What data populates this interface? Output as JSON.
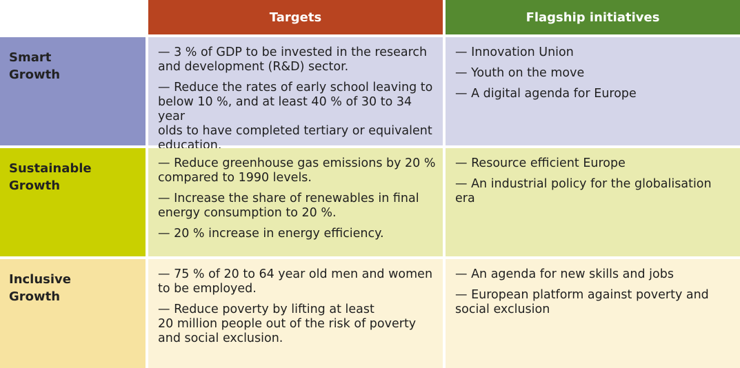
{
  "headers": {
    "targets": "Targets",
    "flagship": "Flagship initiatives"
  },
  "rows": [
    {
      "label": "Smart\nGrowth",
      "targets": [
        "— 3 % of GDP to be invested in the research\nand development (R&D) sector.",
        "— Reduce the rates of early school leaving to\nbelow 10 %, and at least 40 % of 30 to 34 year\nolds to have completed tertiary or equivalent\neducation."
      ],
      "flagship": [
        "— Innovation Union",
        "— Youth on the move",
        "— A digital agenda for Europe"
      ]
    },
    {
      "label": "Sustainable\nGrowth",
      "targets": [
        "— Reduce greenhouse gas emissions by 20 %\ncompared to 1990 levels.",
        "— Increase the share of renewables in final\nenergy consumption to 20 %.",
        "— 20 % increase in energy efficiency."
      ],
      "flagship": [
        "— Resource efficient Europe",
        "— An industrial policy for the globalisation era"
      ]
    },
    {
      "label": "Inclusive\nGrowth",
      "targets": [
        "— 75 % of 20 to 64 year old men and women\nto be employed.",
        "— Reduce poverty by lifting at least\n20 million people out of the risk of poverty\nand social exclusion."
      ],
      "flagship": [
        "— An agenda for new skills and jobs",
        "— European platform against poverty and\nsocial exclusion"
      ]
    }
  ],
  "colors": {
    "header_targets": "#b84420",
    "header_flagship": "#558a30",
    "smart_label": "#8c92c6",
    "smart_content": "#d4d5e9",
    "sustainable_label": "#c9d000",
    "sustainable_content": "#e9ebb0",
    "inclusive_label": "#f7e3a0",
    "inclusive_content": "#fcf3d7"
  }
}
